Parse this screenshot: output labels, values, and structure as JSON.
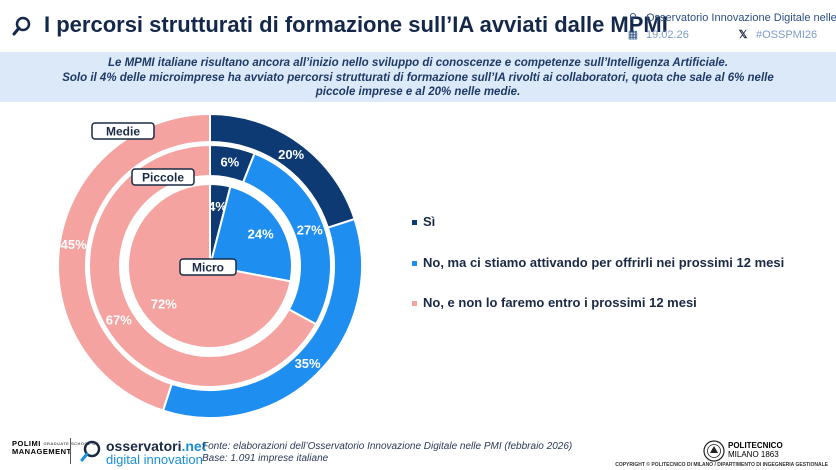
{
  "header": {
    "title": "I percorsi strutturati di formazione sull’IA avviati dalle MPMI",
    "observatory": "Osservatorio Innovazione Digitale nelle PMI",
    "date": "19.02.26",
    "hashtag": "#OSSPMI26"
  },
  "banner": {
    "line1": "Le MPMI italiane risultano ancora all’inizio nello sviluppo di conoscenze e competenze sull’Intelligenza Artificiale.",
    "line2": "Solo il 4% delle microimprese ha avviato percorsi strutturati di formazione sull’IA rivolti ai collaboratori, quota che sale al 6% nelle",
    "line3": "piccole imprese e al 20% nelle medie."
  },
  "chart_data": {
    "type": "pie",
    "subtype": "nested-donut",
    "series": [
      {
        "name": "Medie",
        "values": [
          20,
          35,
          45
        ],
        "labels": [
          "20%",
          "35%",
          "45%"
        ]
      },
      {
        "name": "Piccole",
        "values": [
          6,
          27,
          67
        ],
        "labels": [
          "6%",
          "27%",
          "67%"
        ]
      },
      {
        "name": "Micro",
        "values": [
          4,
          24,
          72
        ],
        "labels": [
          "4%",
          "24%",
          "72%"
        ]
      }
    ],
    "categories": [
      "Sì",
      "No, ma ci stiamo attivando per offrirli nei prossimi 12 mesi",
      "No, e non lo faremo entro i prossimi 12 mesi"
    ],
    "colors": [
      "#0e3a73",
      "#1f8ef1",
      "#f5a3a0"
    ],
    "legend_position": "right"
  },
  "footer": {
    "polimi_line1": "POLIMI",
    "polimi_small": "GRADUATE SCHOOL OF",
    "polimi_line2": "MANAGEMENT",
    "brand_main": "osservatori",
    "brand_net": ".net",
    "brand_sub": "digital innovation",
    "source_line1": "Fonte: elaborazioni dell’Osservatorio Innovazione Digitale nelle PMI (febbraio 2026)",
    "source_line2": "Base: 1.091 imprese italiane",
    "university_line1": "POLITECNICO",
    "university_line2": "MILANO 1863",
    "copyright": "COPYRIGHT © POLITECNICO DI MILANO / DIPARTIMENTO DI INGEGNERIA GESTIONALE"
  }
}
